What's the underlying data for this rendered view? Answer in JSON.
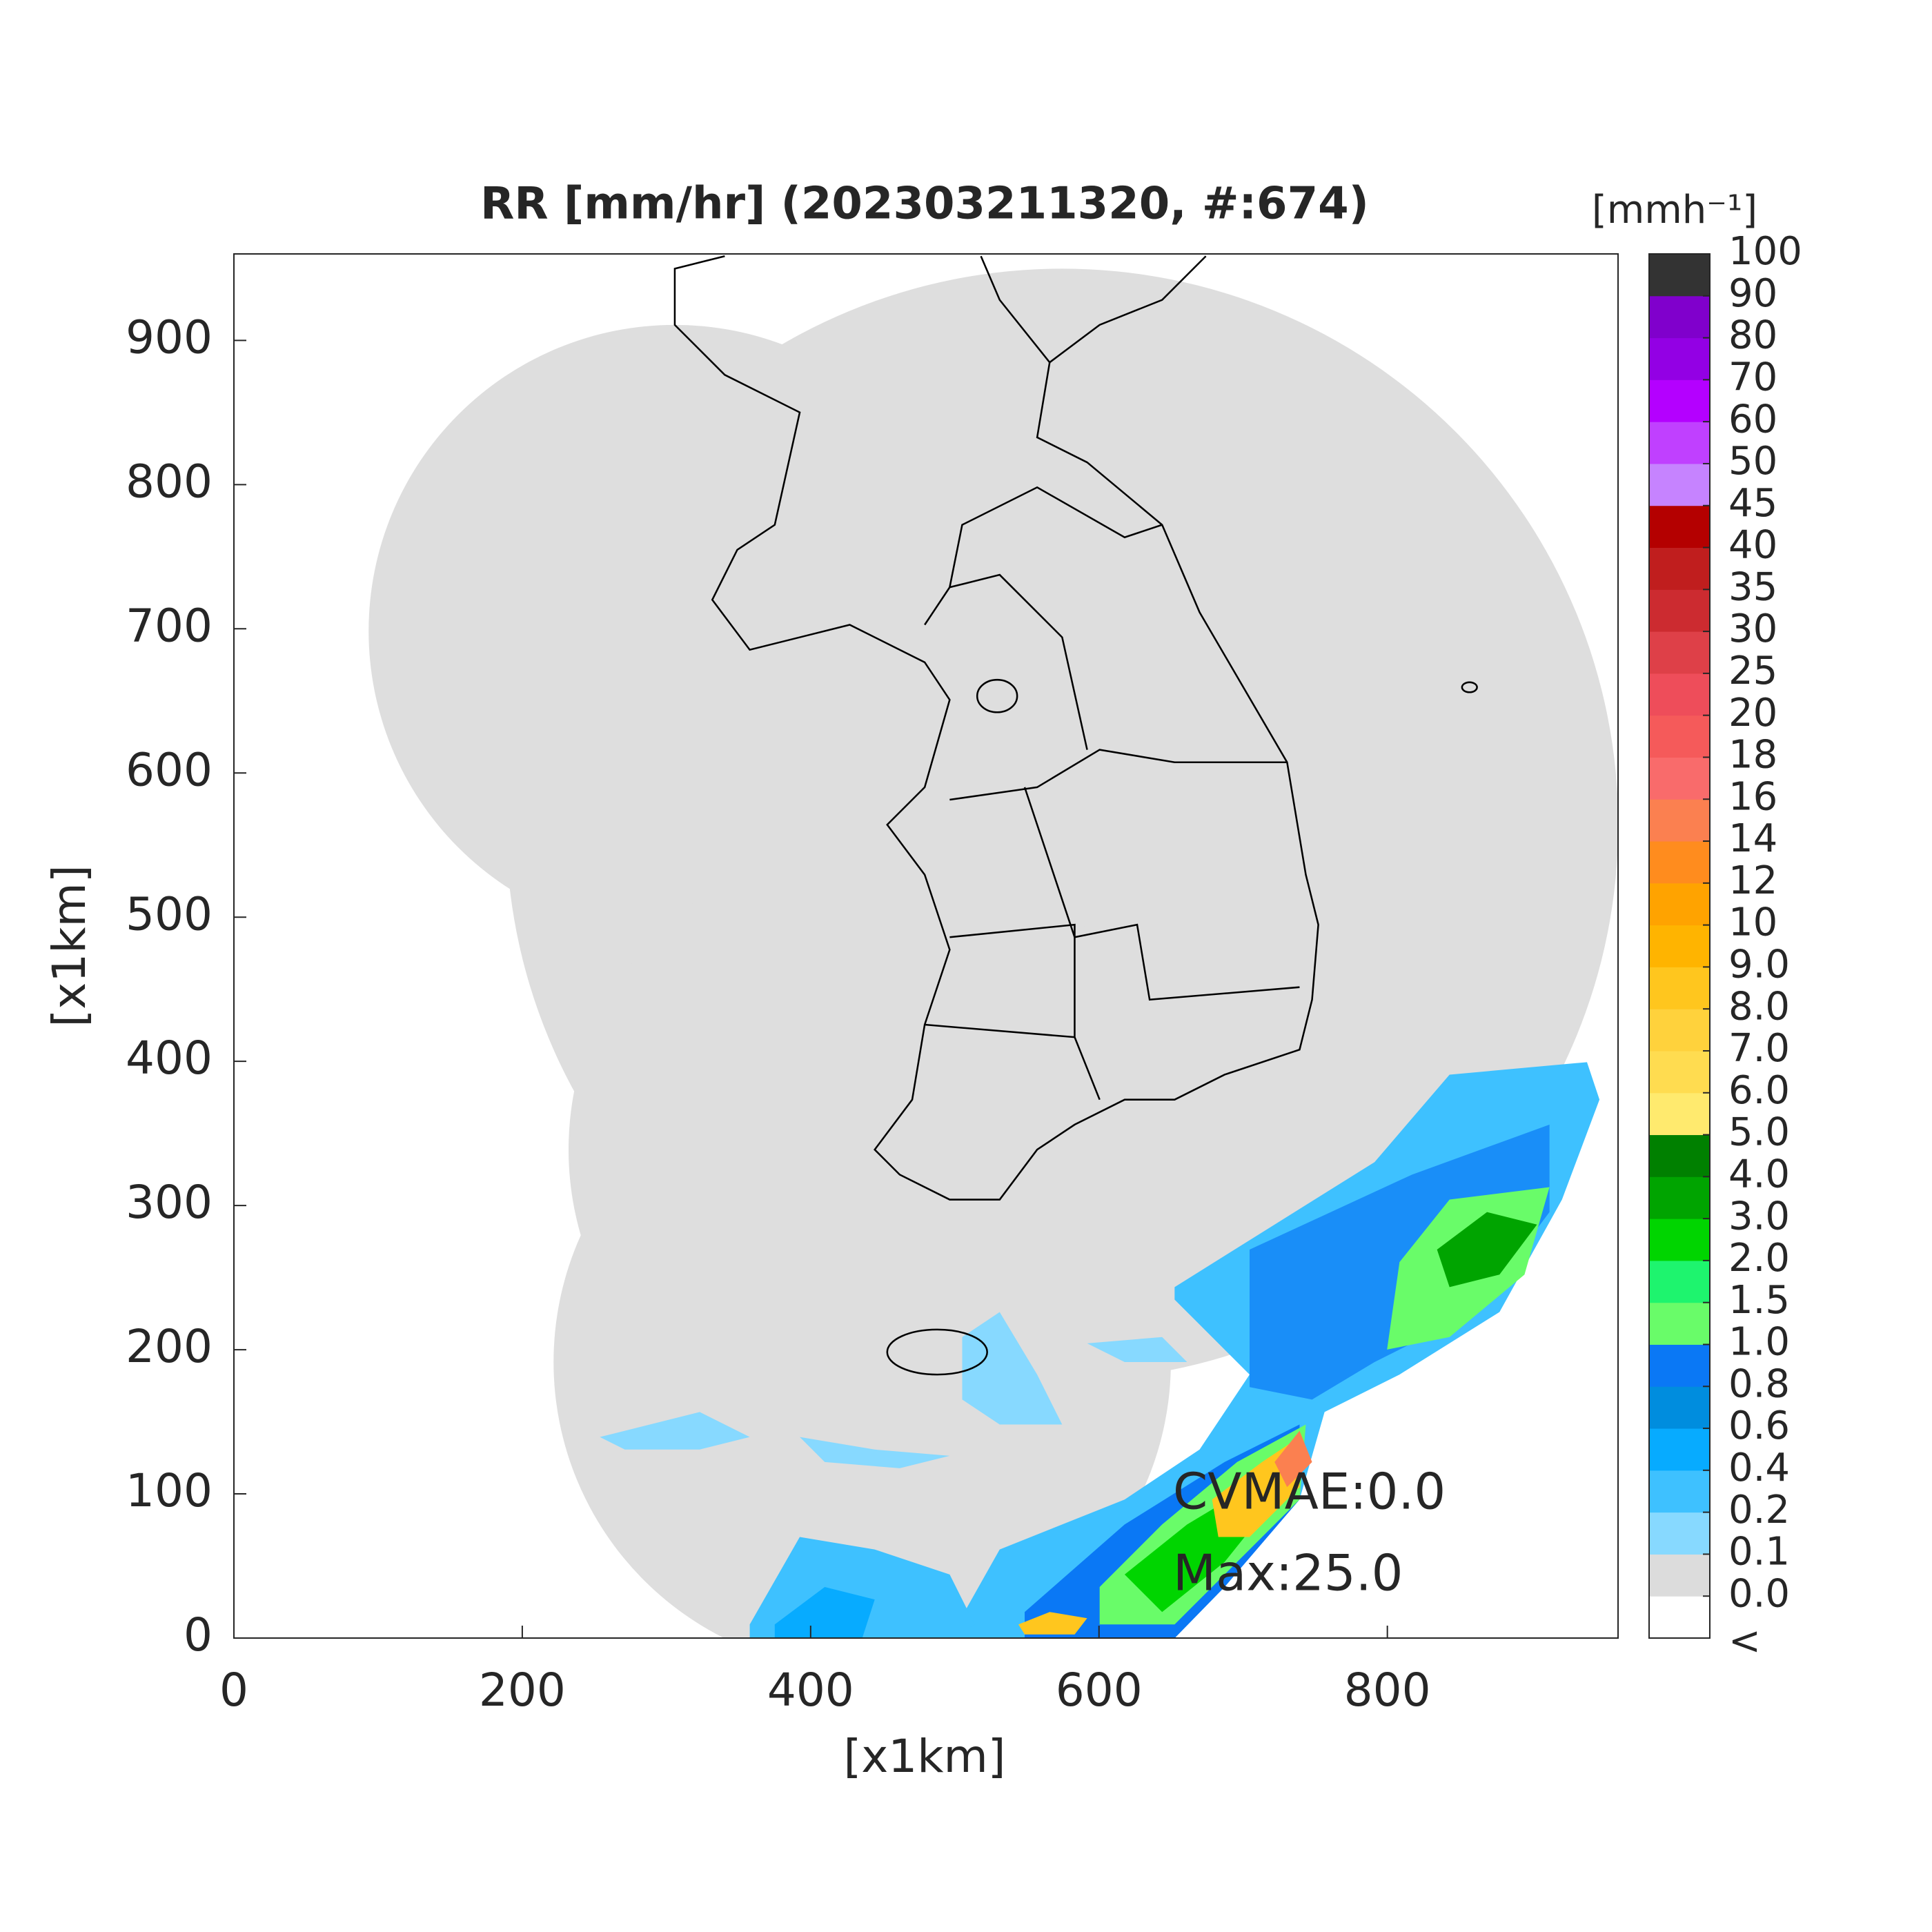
{
  "title": "RR [mm/hr] (202303211320, #:674)",
  "x_axis": {
    "label": "[x1km]",
    "lim": [
      0,
      960
    ],
    "ticks": [
      0,
      200,
      400,
      600,
      800
    ]
  },
  "y_axis": {
    "label": "[x1km]",
    "lim": [
      0,
      960
    ],
    "ticks": [
      0,
      100,
      200,
      300,
      400,
      500,
      600,
      700,
      800,
      900
    ]
  },
  "annotations": [
    "CVMAE:0.0",
    "Max:25.0"
  ],
  "colorbar": {
    "unit": "[mmh⁻¹]",
    "under_label": "<",
    "under_color": "#ffffff",
    "levels": [
      {
        "value": 0,
        "label": "0.0"
      },
      0.1,
      0.2,
      0.4,
      0.6,
      0.8,
      {
        "value": 1,
        "label": "1.0"
      },
      1.5,
      {
        "value": 2,
        "label": "2.0"
      },
      {
        "value": 3,
        "label": "3.0"
      },
      {
        "value": 4,
        "label": "4.0"
      },
      {
        "value": 5,
        "label": "5.0"
      },
      {
        "value": 6,
        "label": "6.0"
      },
      {
        "value": 7,
        "label": "7.0"
      },
      {
        "value": 8,
        "label": "8.0"
      },
      {
        "value": 9,
        "label": "9.0"
      },
      10,
      12,
      14,
      16,
      18,
      20,
      25,
      30,
      35,
      40,
      45,
      50,
      60,
      70,
      80,
      90,
      100
    ],
    "colors": [
      "#dcdcdc",
      "#87d9ff",
      "#3ec1ff",
      "#07abff",
      "#008dde",
      "#0a78f5",
      "#69fc69",
      "#1ef46e",
      "#00d500",
      "#00a400",
      "#008000",
      "#ffea6e",
      "#ffdc50",
      "#ffd23c",
      "#ffc61e",
      "#ffb400",
      "#ffa300",
      "#ff8c1e",
      "#fb8050",
      "#f96b6b",
      "#f55a5a",
      "#ee4d5a",
      "#de4048",
      "#cc2b30",
      "#c01e1e",
      "#b40000",
      "#c683ff",
      "#c040ff",
      "#b400ff",
      "#9300e4",
      "#8000cc",
      "#333333"
    ]
  }
}
